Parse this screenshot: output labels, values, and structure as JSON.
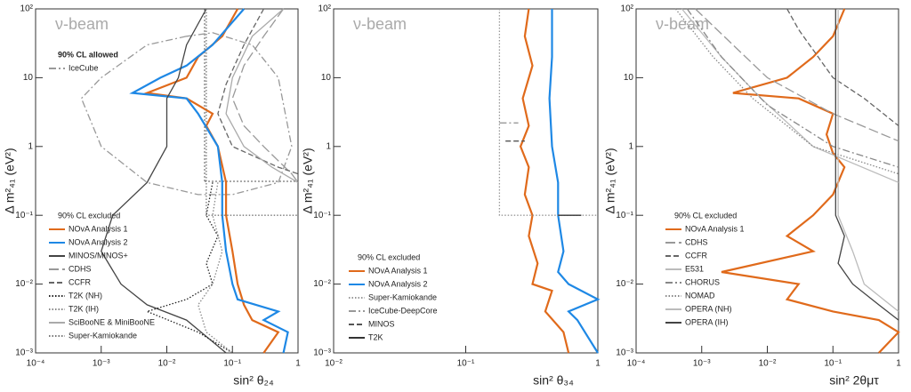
{
  "chart_data": [
    {
      "type": "line",
      "annotation": "ν-beam",
      "xlabel": "sin² θ₂₄",
      "ylabel": "Δ m²₄₁ (eV²)",
      "log_x": true,
      "log_y": true,
      "xlim": [
        0.0001,
        1
      ],
      "ylim": [
        0.001,
        100
      ],
      "xticks": [
        {
          "value": 0.0001,
          "label": "10⁻⁴"
        },
        {
          "value": 0.001,
          "label": "10⁻³"
        },
        {
          "value": 0.01,
          "label": "10⁻²"
        },
        {
          "value": 0.1,
          "label": "10⁻¹"
        },
        1
      ],
      "yticks": [
        {
          "value": 0.001,
          "label": "10⁻³"
        },
        {
          "value": 0.01,
          "label": "10⁻²"
        },
        {
          "value": 0.1,
          "label": "10⁻¹"
        },
        1,
        10,
        {
          "value": 100,
          "label": "10²"
        }
      ],
      "legends": [
        {
          "title": "90% CL allowed",
          "series": [
            {
              "name": "IceCube",
              "color": "#999999",
              "style": "dashdot",
              "x": [
                0.02,
                0.005,
                0.001,
                0.0005,
                0.001,
                0.005,
                0.03,
                0.1,
                0.5,
                0.8,
                0.5,
                0.2,
                0.05,
                0.02
              ],
              "values": [
                40,
                30,
                10,
                5,
                1,
                0.3,
                0.2,
                0.2,
                0.3,
                1,
                10,
                30,
                45,
                40
              ]
            }
          ]
        },
        {
          "title": "90% CL excluded",
          "series": [
            {
              "name": "NOvA Analysis 1",
              "color": "#e06a1b",
              "style": "solid",
              "x": [
                0.12,
                0.07,
                0.03,
                0.02,
                0.005,
                0.02,
                0.05,
                0.04,
                0.06,
                0.08,
                0.08,
                0.1,
                0.12,
                0.15,
                0.2,
                0.5,
                0.3
              ],
              "values": [
                100,
                40,
                20,
                10,
                6,
                5,
                3,
                2,
                1,
                0.3,
                0.1,
                0.03,
                0.01,
                0.005,
                0.003,
                0.002,
                0.001
              ]
            },
            {
              "name": "NOvA Analysis 2",
              "color": "#1e88e5",
              "style": "solid",
              "x": [
                0.15,
                0.05,
                0.02,
                0.008,
                0.003,
                0.02,
                0.03,
                0.06,
                0.07,
                0.07,
                0.08,
                0.1,
                0.12,
                0.5,
                0.3,
                0.7,
                0.6
              ],
              "values": [
                100,
                30,
                15,
                10,
                6,
                5,
                3,
                1,
                0.3,
                0.1,
                0.03,
                0.01,
                0.006,
                0.004,
                0.003,
                0.002,
                0.001
              ]
            },
            {
              "name": "MINOS/MINOS+",
              "color": "#444444",
              "style": "solid",
              "x": [
                0.04,
                0.02,
                0.015,
                0.01,
                0.01,
                0.01,
                0.005,
                0.0015,
                0.001,
                0.002,
                0.005,
                0.02,
                0.08
              ],
              "values": [
                100,
                30,
                10,
                5,
                3,
                1,
                0.3,
                0.1,
                0.03,
                0.01,
                0.005,
                0.003,
                0.001
              ]
            },
            {
              "name": "CDHS",
              "color": "#999999",
              "style": "longdash",
              "x": [
                0.6,
                0.3,
                0.15,
                0.1,
                0.15,
                0.3,
                0.8,
                1
              ],
              "values": [
                100,
                40,
                15,
                5,
                2,
                1,
                0.4,
                0.3
              ]
            },
            {
              "name": "CCFR",
              "color": "#666666",
              "style": "dashed",
              "x": [
                0.3,
                0.15,
                0.08,
                0.06,
                0.1,
                0.5,
                1
              ],
              "values": [
                100,
                30,
                8,
                3,
                1,
                0.5,
                0.4
              ]
            },
            {
              "name": "T2K (NH)",
              "color": "#222222",
              "style": "dotted",
              "x": [
                0.05,
                0.04,
                0.06,
                0.04,
                0.05,
                0.02,
                0.005,
                0.03,
                0.1
              ],
              "values": [
                0.3,
                0.1,
                0.05,
                0.02,
                0.01,
                0.006,
                0.004,
                0.002,
                0.001
              ]
            },
            {
              "name": "T2K (IH)",
              "color": "#888888",
              "style": "dotted",
              "x": [
                0.06,
                0.05,
                0.07,
                0.05,
                0.03,
                0.04,
                0.1
              ],
              "values": [
                0.3,
                0.1,
                0.03,
                0.01,
                0.005,
                0.002,
                0.001
              ]
            },
            {
              "name": "SciBooNE & MiniBooNE",
              "color": "#aaaaaa",
              "style": "solid",
              "x": [
                0.6,
                0.2,
                0.1,
                0.08,
                0.15,
                0.4,
                1
              ],
              "values": [
                100,
                40,
                10,
                3,
                1,
                0.5,
                0.3
              ]
            },
            {
              "name": "Super-Kamiokande",
              "color": "#777777",
              "style": "dotted",
              "x": [
                0.04,
                0.04,
                1
              ],
              "values": [
                100,
                0.1,
                0.1
              ]
            }
          ]
        }
      ]
    },
    {
      "type": "line",
      "annotation": "ν-beam",
      "xlabel": "sin² θ₃₄",
      "ylabel": "Δ m²₄₁ (eV²)",
      "log_x": true,
      "log_y": true,
      "xlim": [
        0.01,
        1
      ],
      "ylim": [
        0.001,
        100
      ],
      "xticks": [
        {
          "value": 0.01,
          "label": "10⁻²"
        },
        {
          "value": 0.1,
          "label": "10⁻¹"
        },
        1
      ],
      "yticks": [
        {
          "value": 0.001,
          "label": "10⁻³"
        },
        {
          "value": 0.01,
          "label": "10⁻²"
        },
        {
          "value": 0.1,
          "label": "10⁻¹"
        },
        1,
        10,
        {
          "value": 100,
          "label": "10²"
        }
      ],
      "legends": [
        {
          "title": "90% CL excluded",
          "series": [
            {
              "name": "NOvA Analysis 1",
              "color": "#e06a1b",
              "style": "solid",
              "x": [
                0.3,
                0.28,
                0.32,
                0.27,
                0.3,
                0.26,
                0.3,
                0.28,
                0.32,
                0.3,
                0.35,
                0.32,
                0.45,
                0.4,
                0.55,
                0.6
              ],
              "values": [
                100,
                40,
                15,
                5,
                2,
                1,
                0.5,
                0.2,
                0.1,
                0.05,
                0.02,
                0.01,
                0.008,
                0.004,
                0.002,
                0.001
              ]
            },
            {
              "name": "NOvA Analysis 2",
              "color": "#1e88e5",
              "style": "solid",
              "x": [
                0.45,
                0.45,
                0.43,
                0.45,
                0.5,
                0.5,
                0.55,
                0.5,
                0.6,
                1,
                0.6,
                0.7,
                1
              ],
              "values": [
                100,
                20,
                5,
                1,
                0.3,
                0.1,
                0.03,
                0.015,
                0.01,
                0.006,
                0.004,
                0.003,
                0.001
              ]
            },
            {
              "name": "Super-Kamiokande",
              "color": "#999999",
              "style": "dotted",
              "x": [
                0.18,
                0.18,
                1
              ],
              "values": [
                100,
                0.1,
                0.1
              ]
            },
            {
              "name": "IceCube-DeepCore",
              "color": "#999999",
              "style": "dashdot",
              "x": [
                0.18,
                0.25
              ],
              "values": [
                2.2,
                2.2
              ]
            },
            {
              "name": "MINOS",
              "color": "#555555",
              "style": "dashed",
              "x": [
                0.2,
                0.28
              ],
              "values": [
                1.2,
                1.2
              ]
            },
            {
              "name": "T2K",
              "color": "#333333",
              "style": "solid",
              "x": [
                0.5,
                0.75
              ],
              "values": [
                0.1,
                0.1
              ]
            }
          ]
        }
      ]
    },
    {
      "type": "line",
      "annotation": "ν-beam",
      "xlabel": "sin² 2θμτ",
      "ylabel": "Δ m²₄₁ (eV²)",
      "log_x": true,
      "log_y": true,
      "xlim": [
        0.0001,
        1
      ],
      "ylim": [
        0.001,
        100
      ],
      "xticks": [
        {
          "value": 0.0001,
          "label": "10⁻⁴"
        },
        {
          "value": 0.001,
          "label": "10⁻³"
        },
        {
          "value": 0.01,
          "label": "10⁻²"
        },
        {
          "value": 0.1,
          "label": "10⁻¹"
        },
        1
      ],
      "yticks": [
        {
          "value": 0.001,
          "label": "10⁻³"
        },
        {
          "value": 0.01,
          "label": "10⁻²"
        },
        {
          "value": 0.1,
          "label": "10⁻¹"
        },
        1,
        10,
        {
          "value": 100,
          "label": "10²"
        }
      ],
      "legends": [
        {
          "title": "90% CL excluded",
          "series": [
            {
              "name": "NOvA Analysis 1",
              "color": "#e06a1b",
              "style": "solid",
              "x": [
                0.15,
                0.1,
                0.05,
                0.02,
                0.003,
                0.03,
                0.1,
                0.08,
                0.1,
                0.15,
                0.1,
                0.05,
                0.02,
                0.05,
                0.002,
                0.03,
                0.02,
                0.1,
                0.5,
                1,
                0.5
              ],
              "values": [
                100,
                40,
                20,
                10,
                6,
                5,
                3,
                1.5,
                0.8,
                0.5,
                0.2,
                0.1,
                0.05,
                0.03,
                0.015,
                0.01,
                0.006,
                0.004,
                0.003,
                0.002,
                0.001
              ]
            },
            {
              "name": "CDHS",
              "color": "#999999",
              "style": "longdash",
              "x": [
                0.0008,
                0.003,
                0.01,
                0.1,
                1
              ],
              "values": [
                100,
                30,
                10,
                3,
                1.2
              ]
            },
            {
              "name": "CCFR",
              "color": "#666666",
              "style": "dashed",
              "x": [
                0.02,
                0.03,
                0.1,
                0.3,
                1
              ],
              "values": [
                100,
                50,
                10,
                5,
                2
              ]
            },
            {
              "name": "E531",
              "color": "#bbbbbb",
              "style": "solid",
              "x": [
                0.0005,
                0.002,
                0.008,
                0.05,
                1
              ],
              "values": [
                100,
                20,
                5,
                1,
                0.3
              ]
            },
            {
              "name": "CHORUS",
              "color": "#888888",
              "style": "dashdot",
              "x": [
                0.0006,
                0.002,
                0.01,
                0.1,
                1
              ],
              "values": [
                100,
                20,
                4,
                1,
                0.5
              ]
            },
            {
              "name": "NOMAD",
              "color": "#888888",
              "style": "dotted",
              "x": [
                0.0004,
                0.0015,
                0.006,
                0.05,
                1
              ],
              "values": [
                100,
                20,
                5,
                1,
                0.4
              ]
            },
            {
              "name": "OPERA (NH)",
              "color": "#bbbbbb",
              "style": "solid",
              "x": [
                0.12,
                0.12,
                0.2,
                0.3,
                1
              ],
              "values": [
                100,
                0.1,
                0.03,
                0.01,
                0.004
              ]
            },
            {
              "name": "OPERA (IH)",
              "color": "#444444",
              "style": "solid",
              "x": [
                0.11,
                0.11,
                0.15,
                0.12,
                0.2,
                0.5,
                1
              ],
              "values": [
                100,
                0.1,
                0.05,
                0.02,
                0.01,
                0.005,
                0.003
              ]
            }
          ]
        }
      ]
    }
  ]
}
